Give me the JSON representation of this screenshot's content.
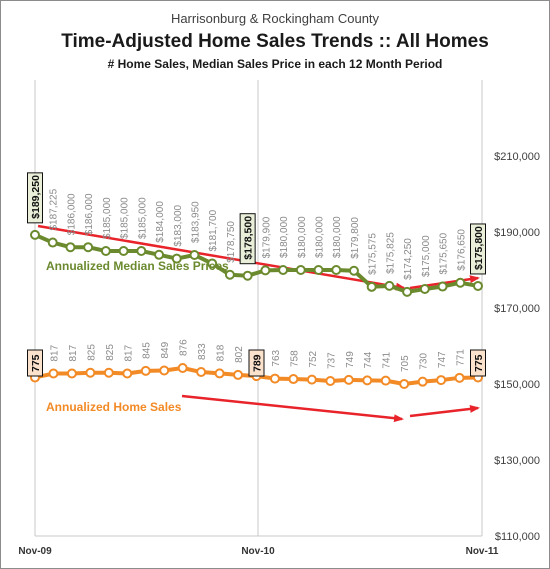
{
  "chart_data": {
    "type": "line",
    "title": "Time-Adjusted Home Sales Trends  ::  All Homes",
    "subtitle_top": "Harrisonburg & Rockingham County",
    "subtitle": "# Home Sales, Median Sales Price in each 12 Month Period",
    "x_labels": [
      "Nov-09",
      "Nov-10",
      "Nov-11"
    ],
    "y_ticks": [
      "$210,000",
      "$190,000",
      "$170,000",
      "$150,000",
      "$130,000",
      "$110,000"
    ],
    "y_tick_values": [
      210000,
      190000,
      170000,
      150000,
      130000,
      110000
    ],
    "ylim": [
      110000,
      230000
    ],
    "grid": "vertical at Nov-09, Nov-10, Nov-11",
    "series": [
      {
        "name": "Annualized Median Sales Prices",
        "color": "#6b8a2e",
        "labels": [
          "$189,250",
          "$187,225",
          "$186,000",
          "$186,000",
          "$185,000",
          "$185,000",
          "$185,000",
          "$184,000",
          "$183,000",
          "$183,950",
          "$181,700",
          "$178,750",
          "$178,500",
          "$179,900",
          "$180,000",
          "$180,000",
          "$180,000",
          "$180,000",
          "$179,800",
          "$175,575",
          "$175,825",
          "$174,250",
          "$175,000",
          "$175,650",
          "$176,650",
          "$175,800"
        ],
        "values": [
          189250,
          187225,
          186000,
          186000,
          185000,
          185000,
          185000,
          184000,
          183000,
          183950,
          181700,
          178750,
          178500,
          179900,
          180000,
          180000,
          180000,
          180000,
          179800,
          175575,
          175825,
          174250,
          175000,
          175650,
          176650,
          175800
        ],
        "boxed": [
          0,
          12,
          25
        ]
      },
      {
        "name": "Annualized Home Sales",
        "color": "#f28a26",
        "labels": [
          "775",
          "817",
          "817",
          "825",
          "825",
          "817",
          "845",
          "849",
          "876",
          "833",
          "818",
          "802",
          "789",
          "763",
          "758",
          "752",
          "737",
          "749",
          "744",
          "741",
          "705",
          "730",
          "747",
          "771",
          "775"
        ],
        "values": [
          775,
          817,
          817,
          825,
          825,
          817,
          845,
          849,
          876,
          833,
          818,
          802,
          789,
          763,
          758,
          752,
          737,
          749,
          744,
          741,
          705,
          730,
          747,
          771,
          775
        ],
        "boxed": [
          0,
          12,
          24
        ]
      }
    ]
  }
}
